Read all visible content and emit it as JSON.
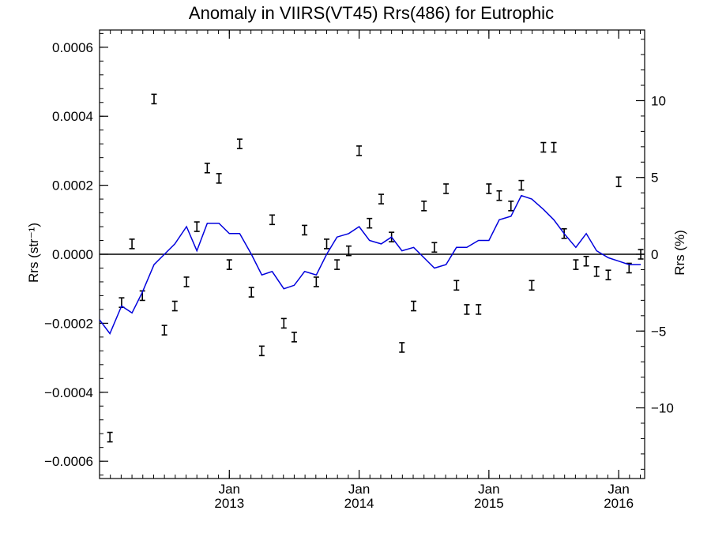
{
  "chart_data": {
    "type": "line",
    "title": "Anomaly in VIIRS(VT45) Rrs(486) for Eutrophic",
    "ylabel_left": "Rrs (str⁻¹)",
    "ylabel_right": "Rrs (%)",
    "xlim": [
      2012.0,
      2016.2
    ],
    "ylim_left": [
      -0.00065,
      0.00065
    ],
    "ylim_right": [
      -14.6,
      14.6
    ],
    "grid": false,
    "zero_line": true,
    "x_ticks": [
      {
        "value": 2013.0,
        "line1": "Jan",
        "line2": "2013"
      },
      {
        "value": 2014.0,
        "line1": "Jan",
        "line2": "2014"
      },
      {
        "value": 2015.0,
        "line1": "Jan",
        "line2": "2015"
      },
      {
        "value": 2016.0,
        "line1": "Jan",
        "line2": "2016"
      }
    ],
    "y_left_ticks": [
      {
        "value": 0.0006,
        "label": "0.0006"
      },
      {
        "value": 0.0004,
        "label": "0.0004"
      },
      {
        "value": 0.0002,
        "label": "0.0002"
      },
      {
        "value": 0.0,
        "label": "0.0000"
      },
      {
        "value": -0.0002,
        "label": "−0.0002"
      },
      {
        "value": -0.0004,
        "label": "−0.0004"
      },
      {
        "value": -0.0006,
        "label": "−0.0006"
      }
    ],
    "y_right_ticks": [
      {
        "value": 10,
        "label": "10"
      },
      {
        "value": 5,
        "label": "5"
      },
      {
        "value": 0,
        "label": "0"
      },
      {
        "value": -5,
        "label": "−5"
      },
      {
        "value": -10,
        "label": "−10"
      }
    ],
    "series": [
      {
        "kind": "errorbar",
        "color": "#000000",
        "points": [
          {
            "x": 2012.08,
            "y": -0.00053
          },
          {
            "x": 2012.17,
            "y": -0.00014
          },
          {
            "x": 2012.25,
            "y": 3e-05
          },
          {
            "x": 2012.33,
            "y": -0.00012
          },
          {
            "x": 2012.42,
            "y": 0.00045
          },
          {
            "x": 2012.5,
            "y": -0.00022
          },
          {
            "x": 2012.58,
            "y": -0.00015
          },
          {
            "x": 2012.67,
            "y": -8e-05
          },
          {
            "x": 2012.75,
            "y": 8e-05
          },
          {
            "x": 2012.83,
            "y": 0.00025
          },
          {
            "x": 2012.92,
            "y": 0.00022
          },
          {
            "x": 2013.0,
            "y": -3e-05
          },
          {
            "x": 2013.08,
            "y": 0.00032
          },
          {
            "x": 2013.17,
            "y": -0.00011
          },
          {
            "x": 2013.25,
            "y": -0.00028
          },
          {
            "x": 2013.33,
            "y": 0.0001
          },
          {
            "x": 2013.42,
            "y": -0.0002
          },
          {
            "x": 2013.5,
            "y": -0.00024
          },
          {
            "x": 2013.58,
            "y": 7e-05
          },
          {
            "x": 2013.67,
            "y": -8e-05
          },
          {
            "x": 2013.75,
            "y": 3e-05
          },
          {
            "x": 2013.83,
            "y": -3e-05
          },
          {
            "x": 2013.92,
            "y": 1e-05
          },
          {
            "x": 2014.0,
            "y": 0.0003
          },
          {
            "x": 2014.08,
            "y": 9e-05
          },
          {
            "x": 2014.17,
            "y": 0.00016
          },
          {
            "x": 2014.25,
            "y": 5e-05
          },
          {
            "x": 2014.33,
            "y": -0.00027
          },
          {
            "x": 2014.42,
            "y": -0.00015
          },
          {
            "x": 2014.5,
            "y": 0.00014
          },
          {
            "x": 2014.58,
            "y": 2e-05
          },
          {
            "x": 2014.67,
            "y": 0.00019
          },
          {
            "x": 2014.75,
            "y": -9e-05
          },
          {
            "x": 2014.83,
            "y": -0.00016
          },
          {
            "x": 2014.92,
            "y": -0.00016
          },
          {
            "x": 2015.0,
            "y": 0.00019
          },
          {
            "x": 2015.08,
            "y": 0.00017
          },
          {
            "x": 2015.17,
            "y": 0.00014
          },
          {
            "x": 2015.25,
            "y": 0.0002
          },
          {
            "x": 2015.33,
            "y": -9e-05
          },
          {
            "x": 2015.42,
            "y": 0.00031
          },
          {
            "x": 2015.5,
            "y": 0.00031
          },
          {
            "x": 2015.58,
            "y": 6e-05
          },
          {
            "x": 2015.67,
            "y": -3e-05
          },
          {
            "x": 2015.75,
            "y": -2e-05
          },
          {
            "x": 2015.83,
            "y": -5e-05
          },
          {
            "x": 2015.92,
            "y": -6e-05
          },
          {
            "x": 2016.0,
            "y": 0.00021
          },
          {
            "x": 2016.08,
            "y": -4e-05
          },
          {
            "x": 2016.17,
            "y": 0.0
          }
        ]
      },
      {
        "kind": "line",
        "color": "#0000dd",
        "points": [
          {
            "x": 2012.0,
            "y": -0.00019
          },
          {
            "x": 2012.08,
            "y": -0.00023
          },
          {
            "x": 2012.17,
            "y": -0.00015
          },
          {
            "x": 2012.25,
            "y": -0.00017
          },
          {
            "x": 2012.33,
            "y": -0.00011
          },
          {
            "x": 2012.42,
            "y": -3e-05
          },
          {
            "x": 2012.5,
            "y": 0.0
          },
          {
            "x": 2012.58,
            "y": 3e-05
          },
          {
            "x": 2012.67,
            "y": 8e-05
          },
          {
            "x": 2012.75,
            "y": 1e-05
          },
          {
            "x": 2012.83,
            "y": 9e-05
          },
          {
            "x": 2012.92,
            "y": 9e-05
          },
          {
            "x": 2013.0,
            "y": 6e-05
          },
          {
            "x": 2013.08,
            "y": 6e-05
          },
          {
            "x": 2013.17,
            "y": 0.0
          },
          {
            "x": 2013.25,
            "y": -6e-05
          },
          {
            "x": 2013.33,
            "y": -5e-05
          },
          {
            "x": 2013.42,
            "y": -0.0001
          },
          {
            "x": 2013.5,
            "y": -9e-05
          },
          {
            "x": 2013.58,
            "y": -5e-05
          },
          {
            "x": 2013.67,
            "y": -6e-05
          },
          {
            "x": 2013.75,
            "y": 0.0
          },
          {
            "x": 2013.83,
            "y": 5e-05
          },
          {
            "x": 2013.92,
            "y": 6e-05
          },
          {
            "x": 2014.0,
            "y": 8e-05
          },
          {
            "x": 2014.08,
            "y": 4e-05
          },
          {
            "x": 2014.17,
            "y": 3e-05
          },
          {
            "x": 2014.25,
            "y": 5e-05
          },
          {
            "x": 2014.33,
            "y": 1e-05
          },
          {
            "x": 2014.42,
            "y": 2e-05
          },
          {
            "x": 2014.5,
            "y": -1e-05
          },
          {
            "x": 2014.58,
            "y": -4e-05
          },
          {
            "x": 2014.67,
            "y": -3e-05
          },
          {
            "x": 2014.75,
            "y": 2e-05
          },
          {
            "x": 2014.83,
            "y": 2e-05
          },
          {
            "x": 2014.92,
            "y": 4e-05
          },
          {
            "x": 2015.0,
            "y": 4e-05
          },
          {
            "x": 2015.08,
            "y": 0.0001
          },
          {
            "x": 2015.17,
            "y": 0.00011
          },
          {
            "x": 2015.25,
            "y": 0.00017
          },
          {
            "x": 2015.33,
            "y": 0.00016
          },
          {
            "x": 2015.42,
            "y": 0.00013
          },
          {
            "x": 2015.5,
            "y": 0.0001
          },
          {
            "x": 2015.58,
            "y": 6e-05
          },
          {
            "x": 2015.67,
            "y": 2e-05
          },
          {
            "x": 2015.75,
            "y": 6e-05
          },
          {
            "x": 2015.83,
            "y": 1e-05
          },
          {
            "x": 2015.92,
            "y": -1e-05
          },
          {
            "x": 2016.0,
            "y": -2e-05
          },
          {
            "x": 2016.08,
            "y": -3e-05
          },
          {
            "x": 2016.17,
            "y": -3e-05
          }
        ]
      }
    ]
  }
}
